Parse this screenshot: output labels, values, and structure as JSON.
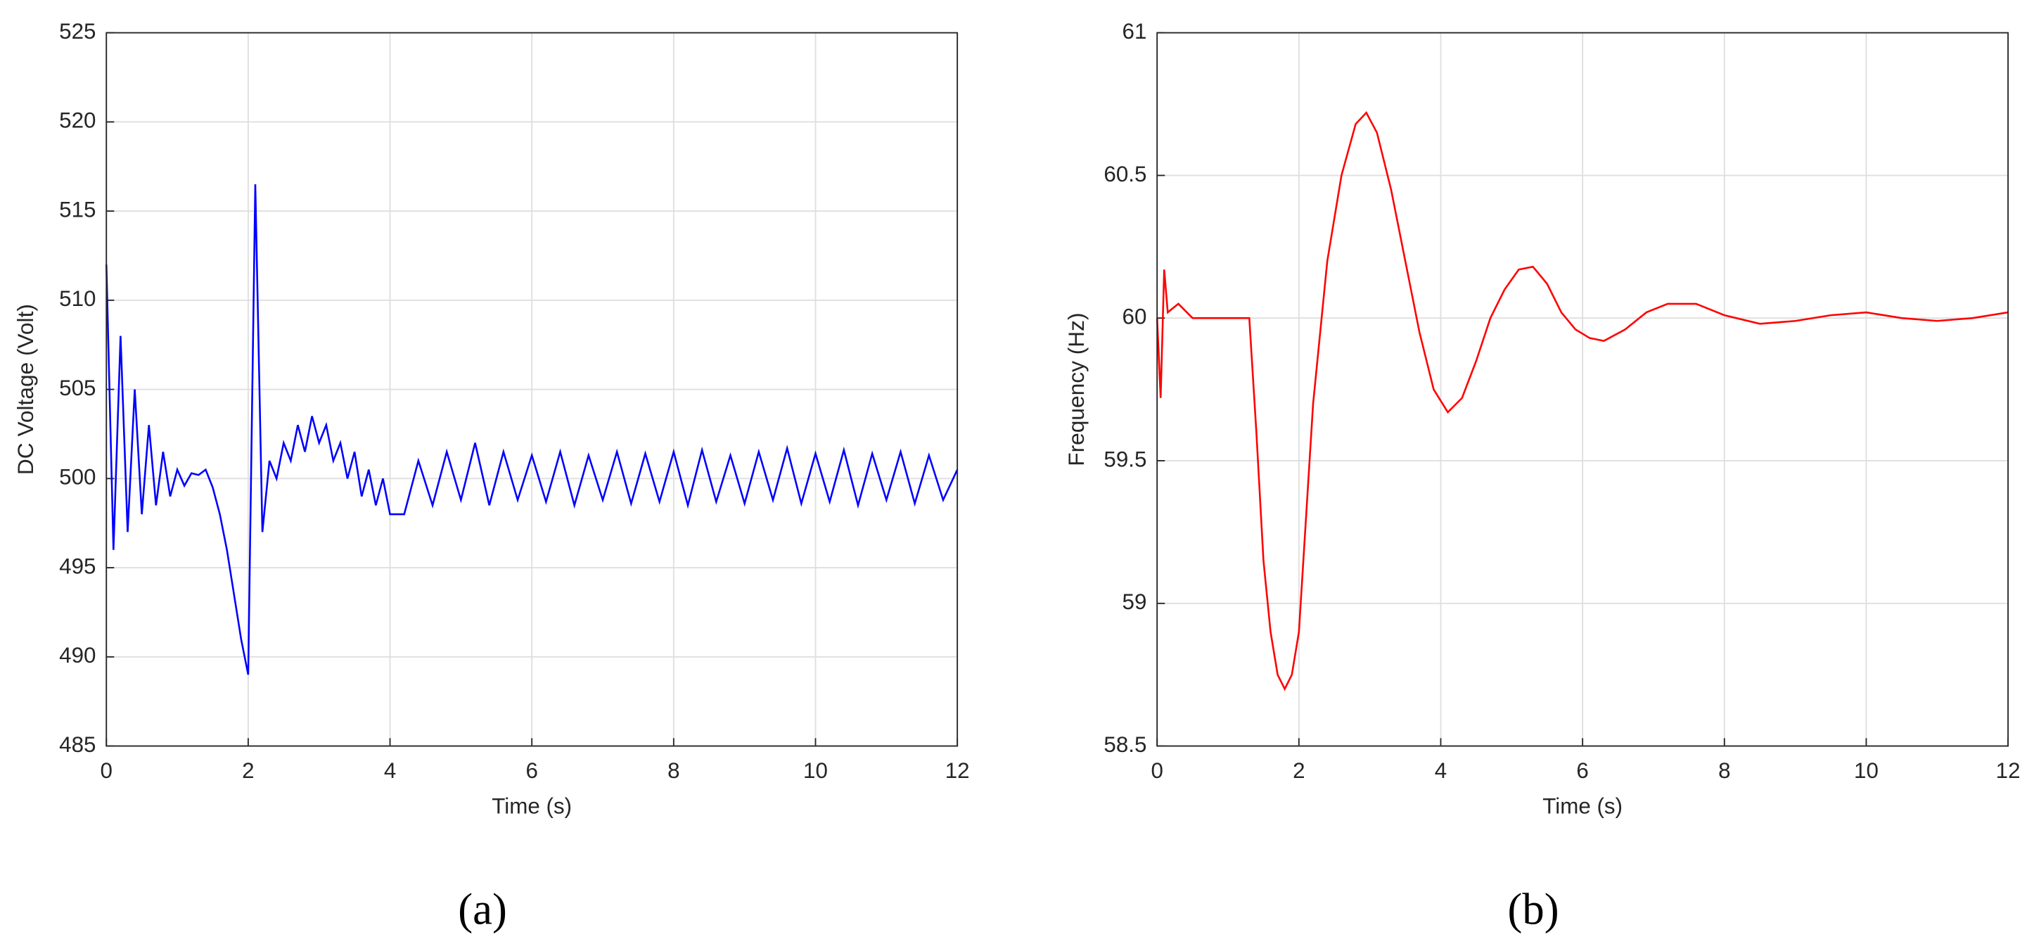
{
  "chart_data": [
    {
      "type": "line",
      "xlabel": "Time (s)",
      "ylabel": "DC  Voltage (Volt)",
      "caption": "(a)",
      "xlim": [
        0,
        12
      ],
      "ylim": [
        485,
        525
      ],
      "xticks": [
        0,
        2,
        4,
        6,
        8,
        10,
        12
      ],
      "yticks": [
        485,
        490,
        495,
        500,
        505,
        510,
        515,
        520,
        525
      ],
      "grid": true,
      "x": [
        0,
        0.1,
        0.2,
        0.3,
        0.4,
        0.5,
        0.6,
        0.7,
        0.8,
        0.9,
        1.0,
        1.1,
        1.2,
        1.3,
        1.4,
        1.5,
        1.6,
        1.7,
        1.8,
        1.9,
        2.0,
        2.1,
        2.2,
        2.3,
        2.4,
        2.5,
        2.6,
        2.7,
        2.8,
        2.9,
        3.0,
        3.1,
        3.2,
        3.3,
        3.4,
        3.5,
        3.6,
        3.7,
        3.8,
        3.9,
        4.0,
        4.2,
        4.4,
        4.6,
        4.8,
        5.0,
        5.2,
        5.4,
        5.6,
        5.8,
        6.0,
        6.2,
        6.4,
        6.6,
        6.8,
        7.0,
        7.2,
        7.4,
        7.6,
        7.8,
        8.0,
        8.2,
        8.4,
        8.6,
        8.8,
        9.0,
        9.2,
        9.4,
        9.6,
        9.8,
        10.0,
        10.2,
        10.4,
        10.6,
        10.8,
        11.0,
        11.2,
        11.4,
        11.6,
        11.8,
        12.0
      ],
      "series": [
        {
          "color": "#0000ff",
          "values": [
            512,
            496,
            508,
            497,
            505,
            498,
            503,
            498.5,
            501.5,
            499,
            500.5,
            499.6,
            500.3,
            500.2,
            500.5,
            499.5,
            498,
            496,
            493.5,
            491,
            489,
            516.5,
            497,
            501,
            500,
            502,
            501,
            503,
            501.5,
            503.5,
            502,
            503,
            501,
            502,
            500,
            501.5,
            499,
            500.5,
            498.5,
            500,
            498,
            498,
            501,
            498.5,
            501.5,
            498.8,
            502,
            498.5,
            501.5,
            498.8,
            501.3,
            498.7,
            501.5,
            498.5,
            501.3,
            498.8,
            501.5,
            498.6,
            501.4,
            498.7,
            501.5,
            498.5,
            501.6,
            498.7,
            501.3,
            498.6,
            501.5,
            498.8,
            501.7,
            498.6,
            501.4,
            498.7,
            501.6,
            498.5,
            501.4,
            498.8,
            501.5,
            498.6,
            501.3,
            498.8,
            500.5
          ]
        }
      ]
    },
    {
      "type": "line",
      "xlabel": "Time (s)",
      "ylabel": "Frequency (Hz)",
      "caption": "(b)",
      "xlim": [
        0,
        12
      ],
      "ylim": [
        58.5,
        61
      ],
      "xticks": [
        0,
        2,
        4,
        6,
        8,
        10,
        12
      ],
      "yticks": [
        58.5,
        59,
        59.5,
        60,
        60.5,
        61
      ],
      "grid": true,
      "x": [
        0,
        0.05,
        0.1,
        0.15,
        0.3,
        0.5,
        1.3,
        1.4,
        1.5,
        1.6,
        1.7,
        1.8,
        1.9,
        2.0,
        2.1,
        2.2,
        2.4,
        2.6,
        2.8,
        2.95,
        3.1,
        3.3,
        3.5,
        3.7,
        3.9,
        4.1,
        4.3,
        4.5,
        4.7,
        4.9,
        5.1,
        5.3,
        5.5,
        5.7,
        5.9,
        6.1,
        6.3,
        6.6,
        6.9,
        7.2,
        7.6,
        8.0,
        8.5,
        9.0,
        9.5,
        10,
        10.5,
        11,
        11.5,
        12
      ],
      "series": [
        {
          "color": "#ff0000",
          "values": [
            60,
            59.72,
            60.17,
            60.02,
            60.05,
            60.0,
            60.0,
            59.6,
            59.15,
            58.9,
            58.75,
            58.7,
            58.75,
            58.9,
            59.3,
            59.7,
            60.2,
            60.5,
            60.68,
            60.72,
            60.65,
            60.45,
            60.2,
            59.95,
            59.75,
            59.67,
            59.72,
            59.85,
            60.0,
            60.1,
            60.17,
            60.18,
            60.12,
            60.02,
            59.96,
            59.93,
            59.92,
            59.96,
            60.02,
            60.05,
            60.05,
            60.01,
            59.98,
            59.99,
            60.01,
            60.02,
            60.0,
            59.99,
            60.0,
            60.02
          ]
        }
      ]
    }
  ]
}
